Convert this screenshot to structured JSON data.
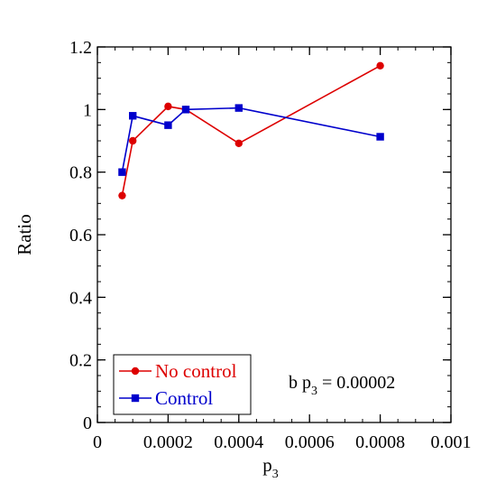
{
  "chart_data": {
    "type": "line",
    "xlabel": "p",
    "xlabel_sub": "3",
    "ylabel": "Ratio",
    "xlim": [
      0,
      0.001
    ],
    "ylim": [
      0,
      1.2
    ],
    "x_ticks": [
      {
        "value": 0,
        "label": "0"
      },
      {
        "value": 0.0002,
        "label": "0.0002"
      },
      {
        "value": 0.0004,
        "label": "0.0004"
      },
      {
        "value": 0.0006,
        "label": "0.0006"
      },
      {
        "value": 0.0008,
        "label": "0.0008"
      },
      {
        "value": 0.001,
        "label": "0.001"
      }
    ],
    "y_ticks": [
      {
        "value": 0,
        "label": "0"
      },
      {
        "value": 0.2,
        "label": "0.2"
      },
      {
        "value": 0.4,
        "label": "0.4"
      },
      {
        "value": 0.6,
        "label": "0.6"
      },
      {
        "value": 0.8,
        "label": "0.8"
      },
      {
        "value": 1,
        "label": "1"
      },
      {
        "value": 1.2,
        "label": "1.2"
      }
    ],
    "x_minor_step": 5e-05,
    "y_minor_step": 0.05,
    "grid": false,
    "legend_position": "bottom-left",
    "series": [
      {
        "name": "No control",
        "color": "#dd0000",
        "marker": "circle",
        "x": [
          7e-05,
          0.0001,
          0.0002,
          0.00025,
          0.0004,
          0.0008
        ],
        "y": [
          0.725,
          0.9,
          1.01,
          1.0,
          0.892,
          1.14
        ]
      },
      {
        "name": "Control",
        "color": "#0000cc",
        "marker": "square",
        "x": [
          7e-05,
          0.0001,
          0.0002,
          0.00025,
          0.0004,
          0.0008
        ],
        "y": [
          0.8,
          0.98,
          0.95,
          1.0,
          1.005,
          0.913
        ]
      }
    ],
    "annotation": {
      "text": "b p",
      "sub": "3",
      "rest": " = 0.00002"
    }
  }
}
